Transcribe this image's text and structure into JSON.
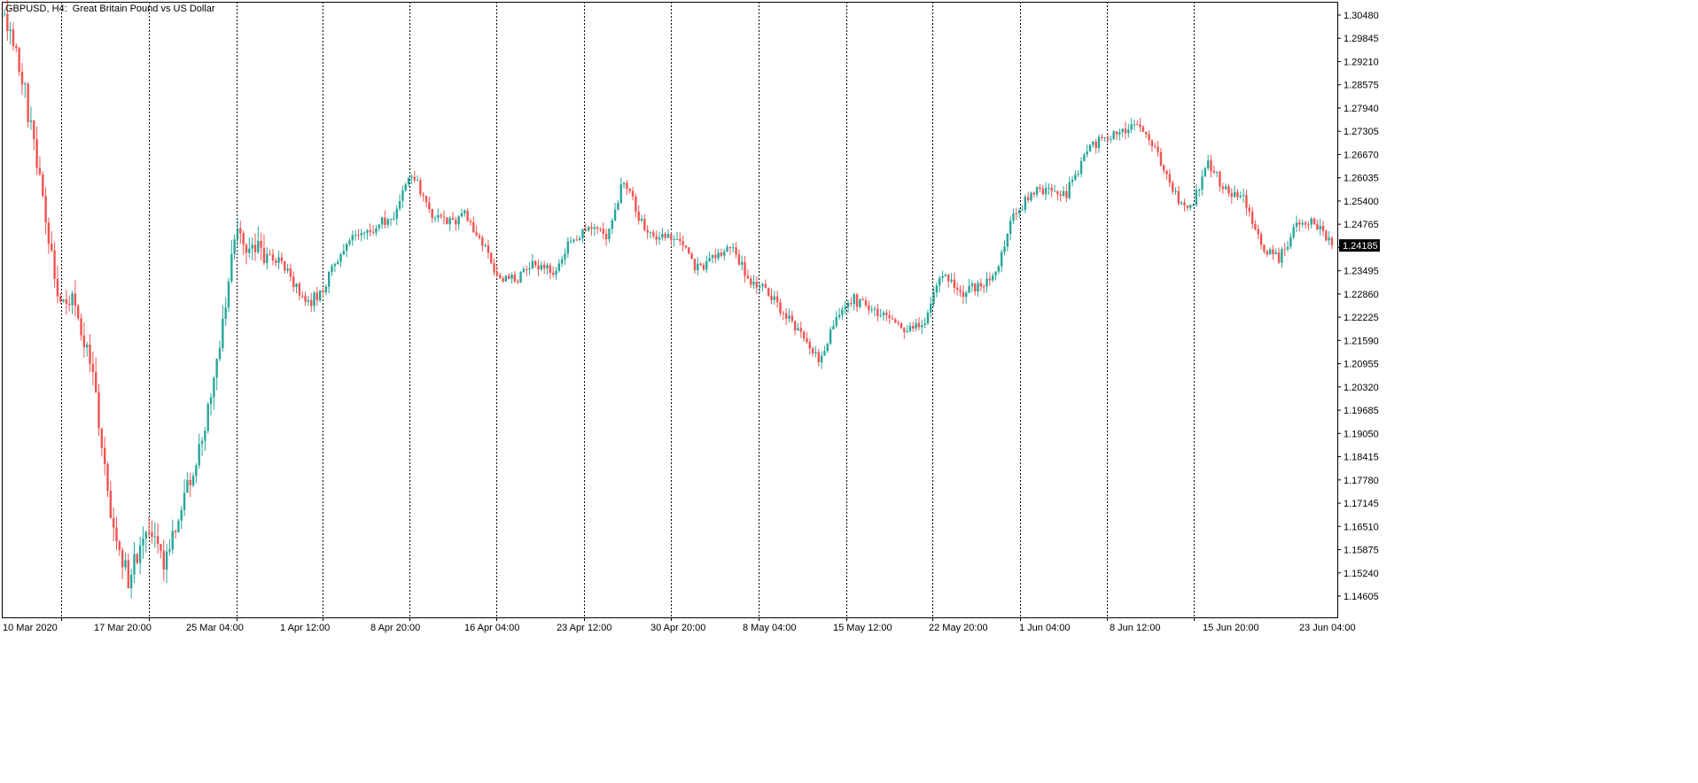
{
  "chart_title": "GBPUSD, H4:  Great Britain Pound vs US Dollar",
  "colors": {
    "up": "#26a69a",
    "down": "#ef5350",
    "grid": "#000000",
    "axis_text": "#000000",
    "current_price_bg": "#000000",
    "current_price_text": "#ffffff",
    "background": "#ffffff"
  },
  "chart_data": {
    "type": "candlestick",
    "symbol": "GBPUSD",
    "timeframe": "H4",
    "title": "GBPUSD, H4:  Great Britain Pound vs US Dollar",
    "ylim": [
      1.1435,
      1.3065
    ],
    "y_tick_labels": [
      "1.30480",
      "1.29845",
      "1.29210",
      "1.28575",
      "1.27940",
      "1.27305",
      "1.26670",
      "1.26035",
      "1.25400",
      "1.24765",
      "1.24130",
      "1.23495",
      "1.22860",
      "1.22225",
      "1.21590",
      "1.20955",
      "1.20320",
      "1.19685",
      "1.19050",
      "1.18415",
      "1.17780",
      "1.17145",
      "1.16510",
      "1.15875",
      "1.15240",
      "1.14605"
    ],
    "x_tick_labels": [
      "10 Mar 2020",
      "17 Mar 20:00",
      "25 Mar 04:00",
      "1 Apr 12:00",
      "8 Apr 20:00",
      "16 Apr 04:00",
      "23 Apr 12:00",
      "30 Apr 20:00",
      "8 May 04:00",
      "15 May 12:00",
      "22 May 20:00",
      "1 Jun 04:00",
      "8 Jun 12:00",
      "15 Jun 20:00",
      "23 Jun 04:00"
    ],
    "grid": "vertical dotted separators at x tick labels",
    "current_price": "1.24185",
    "anchors": [
      [
        "10 Mar 2020",
        1.305
      ],
      [
        "11 Mar",
        1.288
      ],
      [
        "12 Mar",
        1.26
      ],
      [
        "13 Mar",
        1.23
      ],
      [
        "16 Mar",
        1.225
      ],
      [
        "17 Mar",
        1.205
      ],
      [
        "18 Mar",
        1.17
      ],
      [
        "19 Mar",
        1.15
      ],
      [
        "20 Mar",
        1.165
      ],
      [
        "23 Mar",
        1.155
      ],
      [
        "24 Mar",
        1.172
      ],
      [
        "25 Mar",
        1.185
      ],
      [
        "26 Mar",
        1.21
      ],
      [
        "27 Mar",
        1.245
      ],
      [
        "30 Mar",
        1.24
      ],
      [
        "31 Mar",
        1.24
      ],
      [
        "1 Apr",
        1.235
      ],
      [
        "2 Apr",
        1.225
      ],
      [
        "3 Apr",
        1.23
      ],
      [
        "6 Apr",
        1.24
      ],
      [
        "7 Apr",
        1.245
      ],
      [
        "8 Apr",
        1.247
      ],
      [
        "9 Apr",
        1.25
      ],
      [
        "14 Apr",
        1.262
      ],
      [
        "15 Apr",
        1.251
      ],
      [
        "16 Apr",
        1.248
      ],
      [
        "17 Apr",
        1.25
      ],
      [
        "20 Apr",
        1.242
      ],
      [
        "21 Apr",
        1.232
      ],
      [
        "22 Apr",
        1.233
      ],
      [
        "23 Apr",
        1.237
      ],
      [
        "24 Apr",
        1.234
      ],
      [
        "27 Apr",
        1.243
      ],
      [
        "28 Apr",
        1.247
      ],
      [
        "29 Apr",
        1.244
      ],
      [
        "30 Apr",
        1.26
      ],
      [
        "1 May",
        1.248
      ],
      [
        "4 May",
        1.244
      ],
      [
        "5 May",
        1.245
      ],
      [
        "6 May",
        1.235
      ],
      [
        "7 May",
        1.238
      ],
      [
        "8 May",
        1.242
      ],
      [
        "11 May",
        1.233
      ],
      [
        "12 May",
        1.23
      ],
      [
        "13 May",
        1.223
      ],
      [
        "14 May",
        1.218
      ],
      [
        "15 May",
        1.21
      ],
      [
        "18 May",
        1.223
      ],
      [
        "19 May",
        1.227
      ],
      [
        "20 May",
        1.224
      ],
      [
        "21 May",
        1.223
      ],
      [
        "22 May",
        1.218
      ],
      [
        "25 May",
        1.222
      ],
      [
        "26 May",
        1.234
      ],
      [
        "27 May",
        1.229
      ],
      [
        "28 May",
        1.231
      ],
      [
        "29 May",
        1.234
      ],
      [
        "1 Jun",
        1.25
      ],
      [
        "2 Jun",
        1.256
      ],
      [
        "3 Jun",
        1.258
      ],
      [
        "4 Jun",
        1.256
      ],
      [
        "5 Jun",
        1.266
      ],
      [
        "8 Jun",
        1.272
      ],
      [
        "9 Jun",
        1.272
      ],
      [
        "10 Jun",
        1.276
      ],
      [
        "11 Jun",
        1.269
      ],
      [
        "12 Jun",
        1.256
      ],
      [
        "15 Jun",
        1.252
      ],
      [
        "16 Jun",
        1.264
      ],
      [
        "17 Jun",
        1.257
      ],
      [
        "18 Jun",
        1.255
      ],
      [
        "19 Jun",
        1.242
      ],
      [
        "22 Jun",
        1.238
      ],
      [
        "23 Jun",
        1.247
      ],
      [
        "24 Jun",
        1.248
      ],
      [
        "25 Jun",
        1.24185
      ]
    ]
  }
}
